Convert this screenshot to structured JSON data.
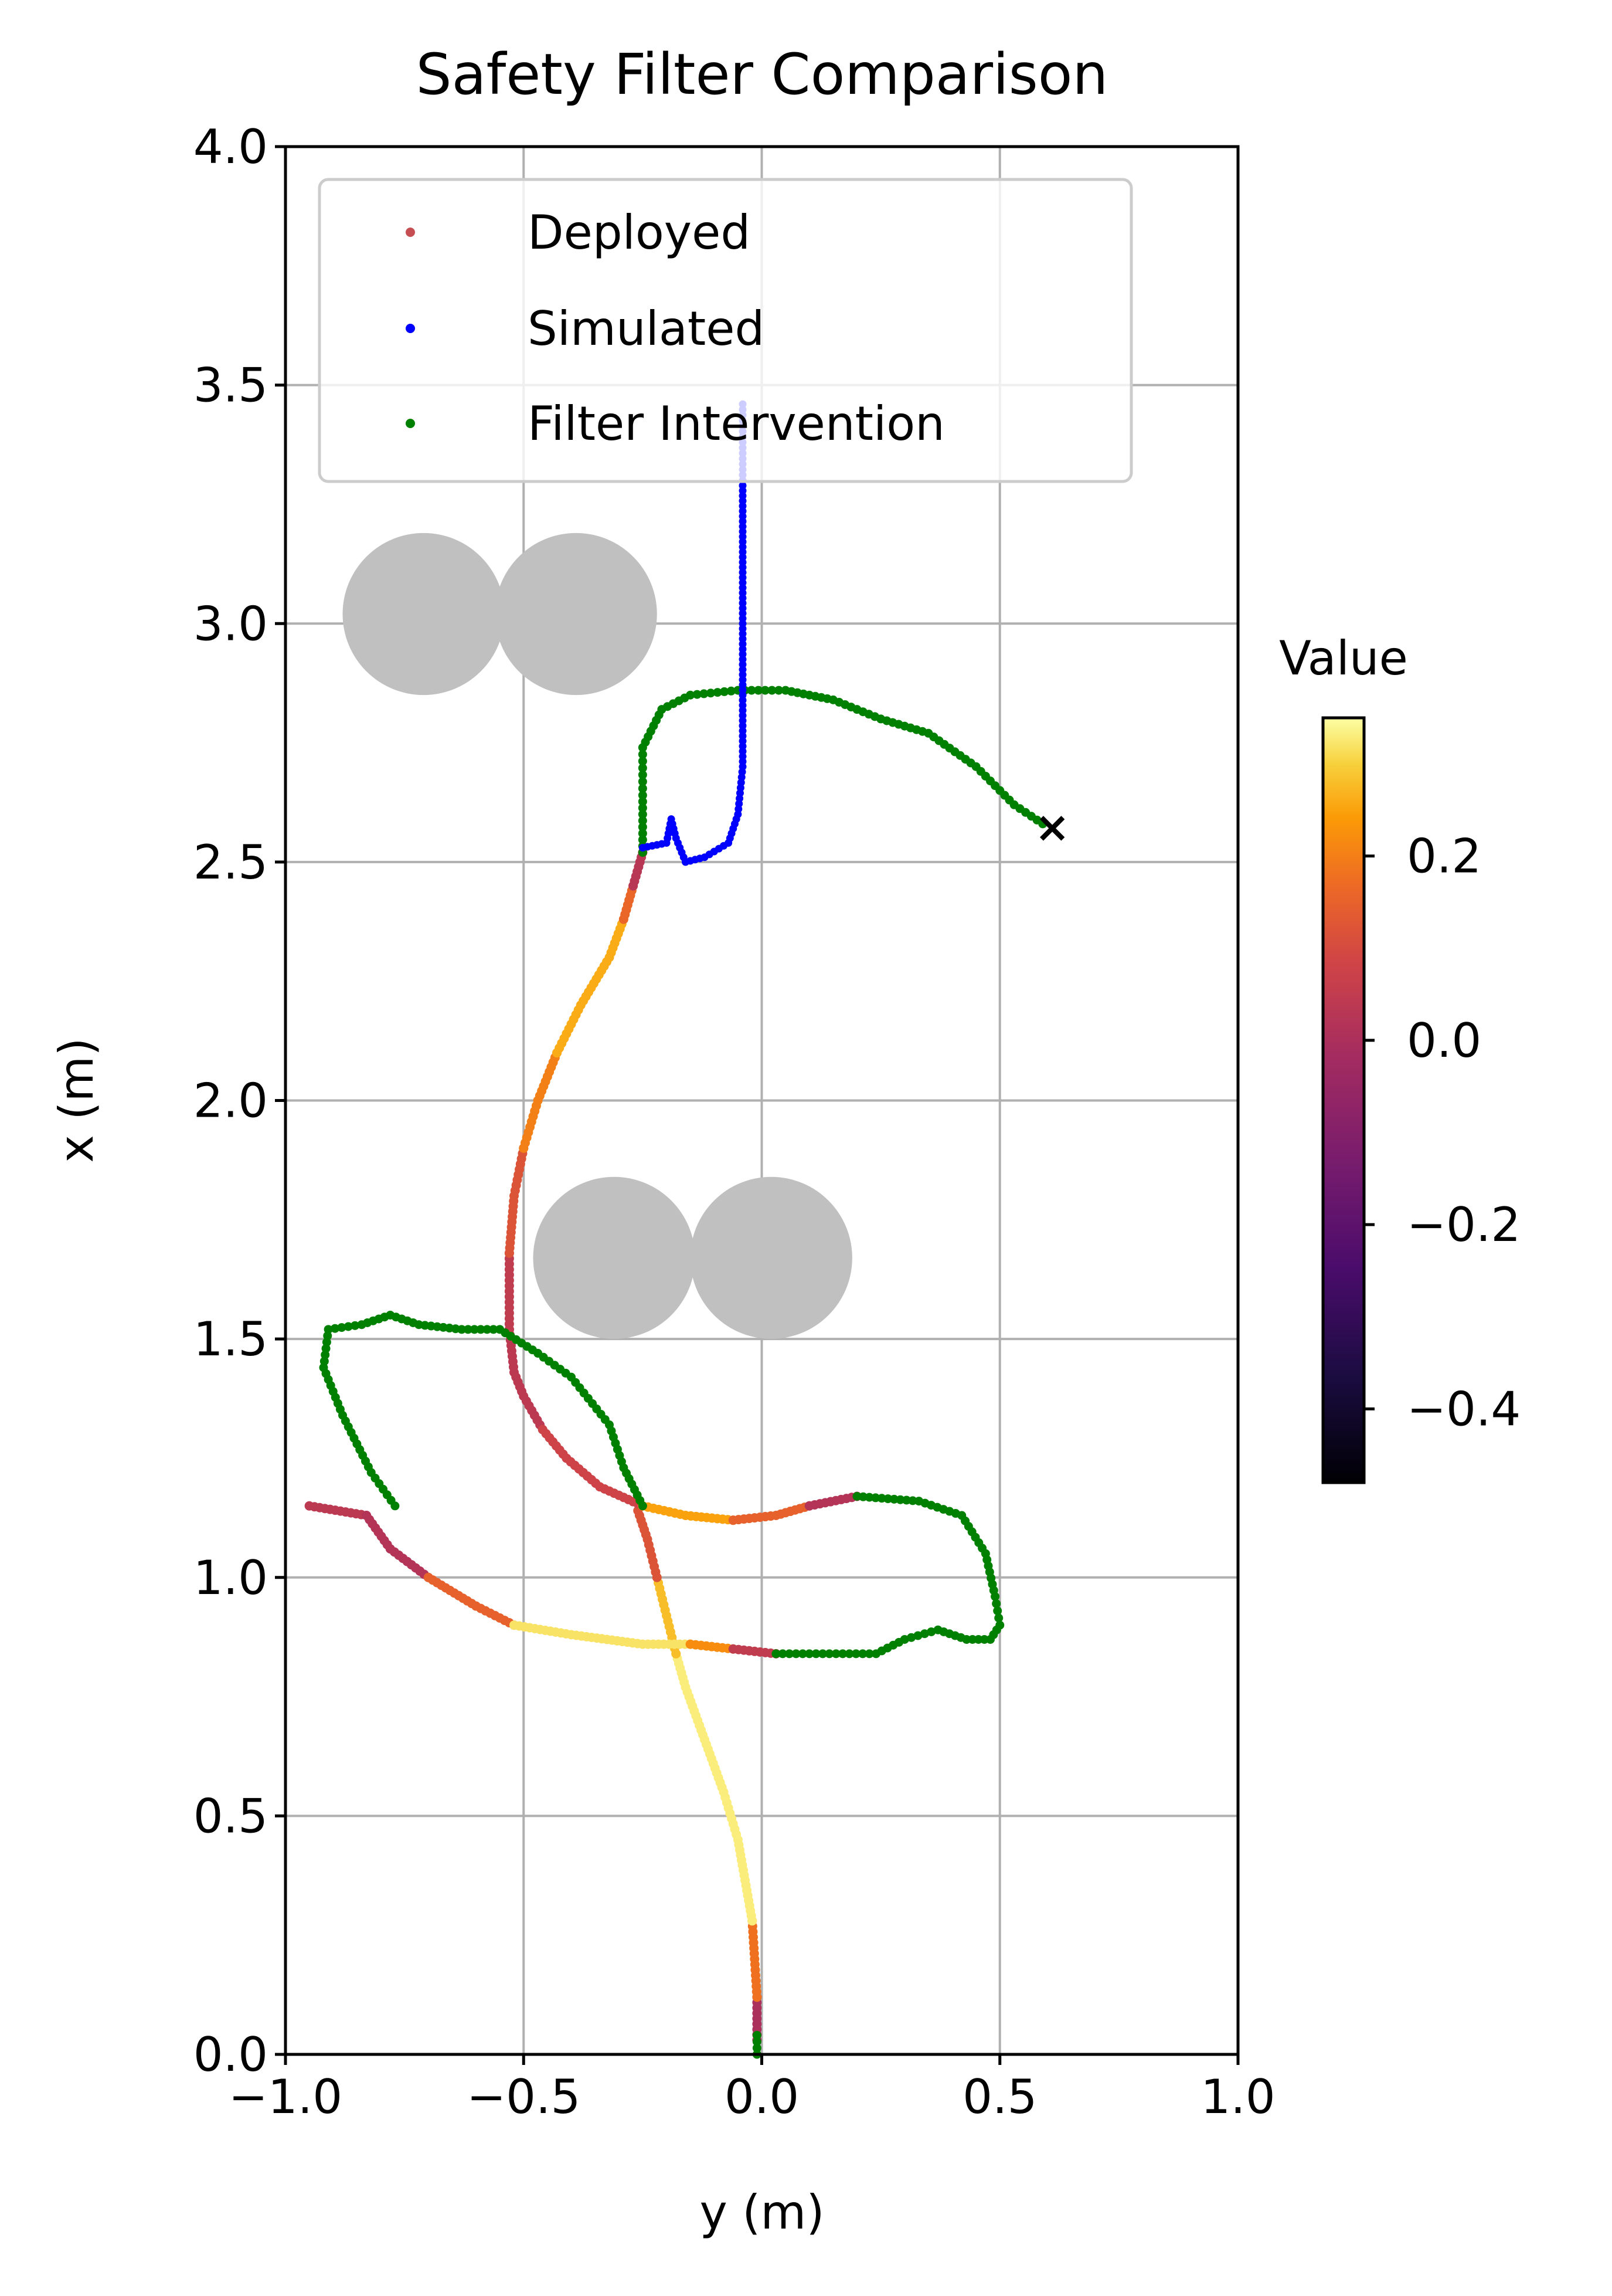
{
  "chart_data": {
    "type": "scatter",
    "title": "Safety Filter Comparison",
    "xlabel": "y (m)",
    "ylabel": "x (m)",
    "xlim": [
      -1.0,
      1.0
    ],
    "ylim": [
      0.0,
      4.0
    ],
    "xticks": [
      "−1.0",
      "−0.5",
      "0.0",
      "0.5",
      "1.0"
    ],
    "yticks": [
      "0.0",
      "0.5",
      "1.0",
      "1.5",
      "2.0",
      "2.5",
      "3.0",
      "3.5",
      "4.0"
    ],
    "grid": true,
    "legend": {
      "position": "top-left",
      "entries": [
        {
          "label": "Deployed",
          "color": "#c44e52"
        },
        {
          "label": "Simulated",
          "color": "#0000ff"
        },
        {
          "label": "Filter Intervention",
          "color": "#008000"
        }
      ]
    },
    "colorbar": {
      "label": "Value",
      "colormap": "inferno",
      "range": [
        -0.48,
        0.35
      ],
      "ticks": [
        "0.2",
        "0.0",
        "−0.2",
        "−0.4"
      ]
    },
    "obstacles": [
      {
        "y": -0.71,
        "x": 3.02,
        "r": 0.17
      },
      {
        "y": -0.39,
        "x": 3.02,
        "r": 0.17
      },
      {
        "y": -0.31,
        "x": 1.67,
        "r": 0.17
      },
      {
        "y": 0.02,
        "x": 1.67,
        "r": 0.17
      }
    ],
    "end_marker": {
      "y": 0.61,
      "x": 2.57,
      "symbol": "×",
      "color": "#ff0000"
    },
    "series": [
      {
        "name": "Deployed",
        "segments": [
          {
            "value": 0.0,
            "points": [
              [
                -0.01,
                0.03
              ],
              [
                -0.01,
                0.12
              ]
            ]
          },
          {
            "value": 0.18,
            "points": [
              [
                -0.01,
                0.12
              ],
              [
                -0.02,
                0.28
              ]
            ]
          },
          {
            "value": 0.33,
            "points": [
              [
                -0.02,
                0.28
              ],
              [
                -0.05,
                0.45
              ],
              [
                -0.08,
                0.55
              ],
              [
                -0.12,
                0.66
              ],
              [
                -0.16,
                0.77
              ],
              [
                -0.18,
                0.84
              ]
            ]
          },
          {
            "value": 0.28,
            "points": [
              [
                -0.18,
                0.84
              ],
              [
                -0.2,
                0.92
              ],
              [
                -0.22,
                1.0
              ]
            ]
          },
          {
            "value": 0.12,
            "points": [
              [
                -0.22,
                1.0
              ],
              [
                -0.24,
                1.08
              ],
              [
                -0.26,
                1.14
              ]
            ]
          },
          {
            "value": 0.04,
            "points": [
              [
                -0.95,
                1.15
              ],
              [
                -0.83,
                1.13
              ]
            ]
          },
          {
            "value": 0.02,
            "points": [
              [
                -0.83,
                1.13
              ],
              [
                -0.78,
                1.06
              ],
              [
                -0.7,
                1.0
              ]
            ]
          },
          {
            "value": 0.15,
            "points": [
              [
                -0.7,
                1.0
              ],
              [
                -0.6,
                0.94
              ],
              [
                -0.52,
                0.9
              ]
            ]
          },
          {
            "value": 0.32,
            "points": [
              [
                -0.52,
                0.9
              ],
              [
                -0.4,
                0.88
              ],
              [
                -0.25,
                0.86
              ],
              [
                -0.15,
                0.86
              ]
            ]
          },
          {
            "value": 0.22,
            "points": [
              [
                -0.15,
                0.86
              ],
              [
                -0.06,
                0.85
              ]
            ]
          },
          {
            "value": 0.05,
            "points": [
              [
                -0.06,
                0.85
              ],
              [
                0.03,
                0.84
              ]
            ]
          },
          {
            "value": 0.04,
            "points": [
              [
                -0.53,
                1.52
              ],
              [
                -0.52,
                1.43
              ],
              [
                -0.5,
                1.38
              ],
              [
                -0.46,
                1.31
              ]
            ]
          },
          {
            "value": 0.08,
            "points": [
              [
                -0.46,
                1.31
              ],
              [
                -0.41,
                1.25
              ],
              [
                -0.34,
                1.19
              ],
              [
                -0.25,
                1.15
              ]
            ]
          },
          {
            "value": 0.25,
            "points": [
              [
                -0.25,
                1.15
              ],
              [
                -0.16,
                1.13
              ],
              [
                -0.06,
                1.12
              ]
            ]
          },
          {
            "value": 0.15,
            "points": [
              [
                -0.06,
                1.12
              ],
              [
                0.03,
                1.13
              ],
              [
                0.1,
                1.15
              ]
            ]
          },
          {
            "value": 0.02,
            "points": [
              [
                0.1,
                1.15
              ],
              [
                0.2,
                1.17
              ]
            ]
          },
          {
            "value": 0.05,
            "points": [
              [
                -0.53,
                1.52
              ],
              [
                -0.53,
                1.6
              ],
              [
                -0.53,
                1.68
              ]
            ]
          },
          {
            "value": 0.12,
            "points": [
              [
                -0.53,
                1.68
              ],
              [
                -0.52,
                1.8
              ],
              [
                -0.5,
                1.9
              ]
            ]
          },
          {
            "value": 0.2,
            "points": [
              [
                -0.5,
                1.9
              ],
              [
                -0.47,
                2.0
              ],
              [
                -0.43,
                2.1
              ]
            ]
          },
          {
            "value": 0.26,
            "points": [
              [
                -0.43,
                2.1
              ],
              [
                -0.38,
                2.2
              ],
              [
                -0.32,
                2.3
              ],
              [
                -0.29,
                2.38
              ]
            ]
          },
          {
            "value": 0.16,
            "points": [
              [
                -0.29,
                2.38
              ],
              [
                -0.27,
                2.45
              ]
            ]
          },
          {
            "value": 0.03,
            "points": [
              [
                -0.27,
                2.45
              ],
              [
                -0.25,
                2.52
              ]
            ]
          }
        ]
      },
      {
        "name": "Simulated",
        "points": [
          [
            -0.25,
            2.53
          ],
          [
            -0.2,
            2.54
          ],
          [
            -0.19,
            2.59
          ],
          [
            -0.18,
            2.55
          ],
          [
            -0.16,
            2.5
          ],
          [
            -0.12,
            2.51
          ],
          [
            -0.07,
            2.54
          ],
          [
            -0.05,
            2.6
          ],
          [
            -0.04,
            2.7
          ],
          [
            -0.04,
            2.85
          ],
          [
            -0.04,
            3.0
          ],
          [
            -0.04,
            3.15
          ],
          [
            -0.04,
            3.3
          ],
          [
            -0.04,
            3.46
          ]
        ]
      },
      {
        "name": "Filter Intervention",
        "paths": [
          {
            "points": [
              [
                -0.01,
                0.0
              ],
              [
                -0.01,
                0.04
              ]
            ]
          },
          {
            "points": [
              [
                -0.77,
                1.15
              ],
              [
                -0.82,
                1.22
              ],
              [
                -0.88,
                1.34
              ],
              [
                -0.92,
                1.44
              ],
              [
                -0.91,
                1.52
              ],
              [
                -0.84,
                1.53
              ],
              [
                -0.78,
                1.55
              ],
              [
                -0.72,
                1.53
              ],
              [
                -0.63,
                1.52
              ],
              [
                -0.55,
                1.52
              ],
              [
                -0.47,
                1.47
              ],
              [
                -0.4,
                1.42
              ],
              [
                -0.32,
                1.32
              ],
              [
                -0.29,
                1.23
              ],
              [
                -0.25,
                1.15
              ]
            ]
          },
          {
            "points": [
              [
                0.2,
                1.17
              ],
              [
                0.33,
                1.16
              ],
              [
                0.42,
                1.13
              ],
              [
                0.47,
                1.05
              ],
              [
                0.49,
                0.96
              ],
              [
                0.5,
                0.9
              ],
              [
                0.48,
                0.87
              ],
              [
                0.43,
                0.87
              ],
              [
                0.37,
                0.89
              ],
              [
                0.3,
                0.87
              ],
              [
                0.24,
                0.84
              ],
              [
                0.17,
                0.84
              ],
              [
                0.1,
                0.84
              ],
              [
                0.03,
                0.84
              ]
            ]
          },
          {
            "points": [
              [
                -0.25,
                2.52
              ],
              [
                -0.25,
                2.64
              ],
              [
                -0.25,
                2.74
              ],
              [
                -0.21,
                2.82
              ],
              [
                -0.15,
                2.85
              ],
              [
                -0.05,
                2.86
              ],
              [
                0.05,
                2.86
              ],
              [
                0.15,
                2.84
              ],
              [
                0.25,
                2.8
              ],
              [
                0.35,
                2.77
              ],
              [
                0.45,
                2.7
              ],
              [
                0.53,
                2.62
              ],
              [
                0.59,
                2.58
              ]
            ]
          }
        ]
      }
    ]
  }
}
